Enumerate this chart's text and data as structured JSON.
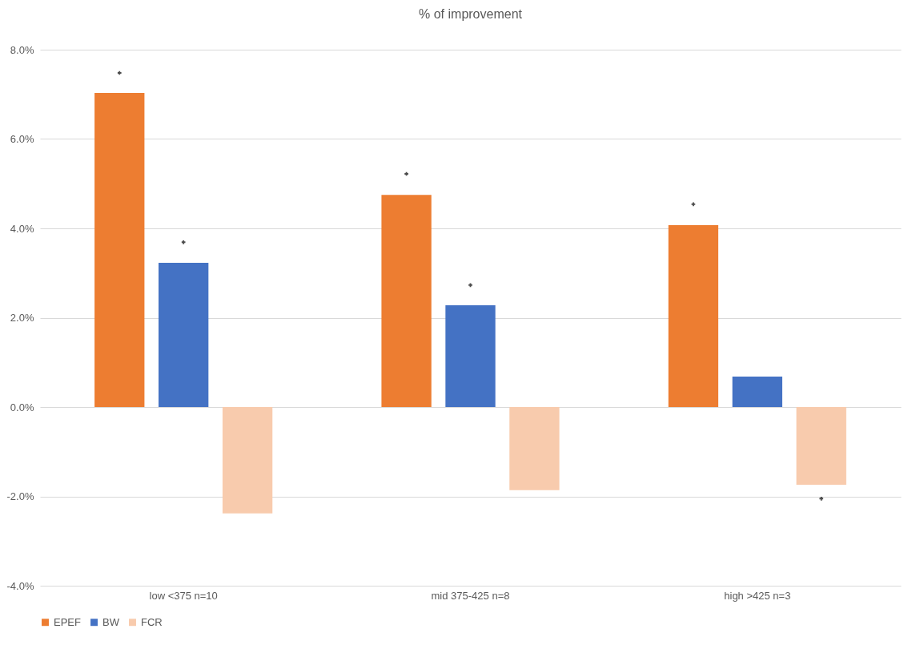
{
  "chart_data": {
    "type": "bar",
    "title": "% of improvement",
    "categories": [
      "low <375 n=10",
      "mid 375-425 n=8",
      "high >425 n=3"
    ],
    "series": [
      {
        "name": "EPEF",
        "color": "#ed7d31",
        "values": [
          7.03,
          4.75,
          4.07
        ]
      },
      {
        "name": "BW",
        "color": "#4472c4",
        "values": [
          3.23,
          2.28,
          0.68
        ]
      },
      {
        "name": "FCR",
        "color": "#f8cbad",
        "values": [
          -2.38,
          -1.86,
          -1.74
        ]
      },
      {
        "type": "scatter",
        "color": "#000000",
        "marker": "cross",
        "x": [
          "low <375 n=10",
          "low <375 n=10",
          "mid 375-425 n=8",
          "mid 375-425 n=8",
          "high >425 n=3",
          "high >425 n=3"
        ],
        "values": [
          7.48,
          3.69,
          5.22,
          2.73,
          4.54,
          -2.05
        ]
      }
    ],
    "ylim": [
      -4,
      8
    ],
    "yticks": [
      {
        "value": -4,
        "label": "-4.0%"
      },
      {
        "value": -2,
        "label": "-2.0%"
      },
      {
        "value": 0,
        "label": "0.0%"
      },
      {
        "value": 2,
        "label": "2.0%"
      },
      {
        "value": 4,
        "label": "4.0%"
      },
      {
        "value": 6,
        "label": "6.0%"
      },
      {
        "value": 8,
        "label": "8.0%"
      }
    ],
    "grid": "y",
    "legend": "bottom"
  }
}
